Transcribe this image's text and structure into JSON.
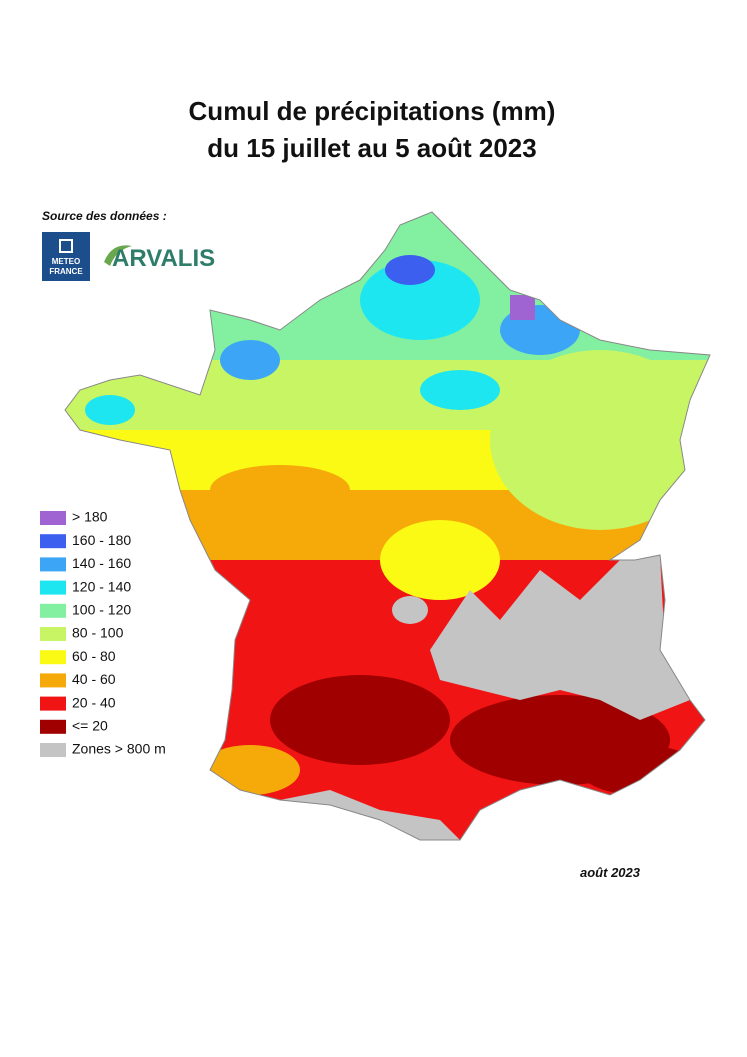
{
  "title": [
    "Cumul de précipitations (mm)",
    "du 15 juillet au 5 août 2023"
  ],
  "source": {
    "label": "Source des données :",
    "meteo_france": [
      "METEO",
      "FRANCE"
    ],
    "arvalis": "ARVALIS"
  },
  "legend": [
    {
      "label": "> 180",
      "color": "#a064d2"
    },
    {
      "label": "160 - 180",
      "color": "#3c5ff0"
    },
    {
      "label": "140 - 160",
      "color": "#3ca5f5"
    },
    {
      "label": "120 - 140",
      "color": "#1ee6f0"
    },
    {
      "label": "100 - 120",
      "color": "#82f0a0"
    },
    {
      "label": "80 - 100",
      "color": "#c8f564"
    },
    {
      "label": "60 - 80",
      "color": "#fafa14"
    },
    {
      "label": "40 - 60",
      "color": "#f5aa0a"
    },
    {
      "label": "20 - 40",
      "color": "#f01414"
    },
    {
      "label": "<= 20",
      "color": "#a00000"
    },
    {
      "label": "Zones > 800 m",
      "color": "#c4c4c4"
    }
  ],
  "date": "août 2023"
}
